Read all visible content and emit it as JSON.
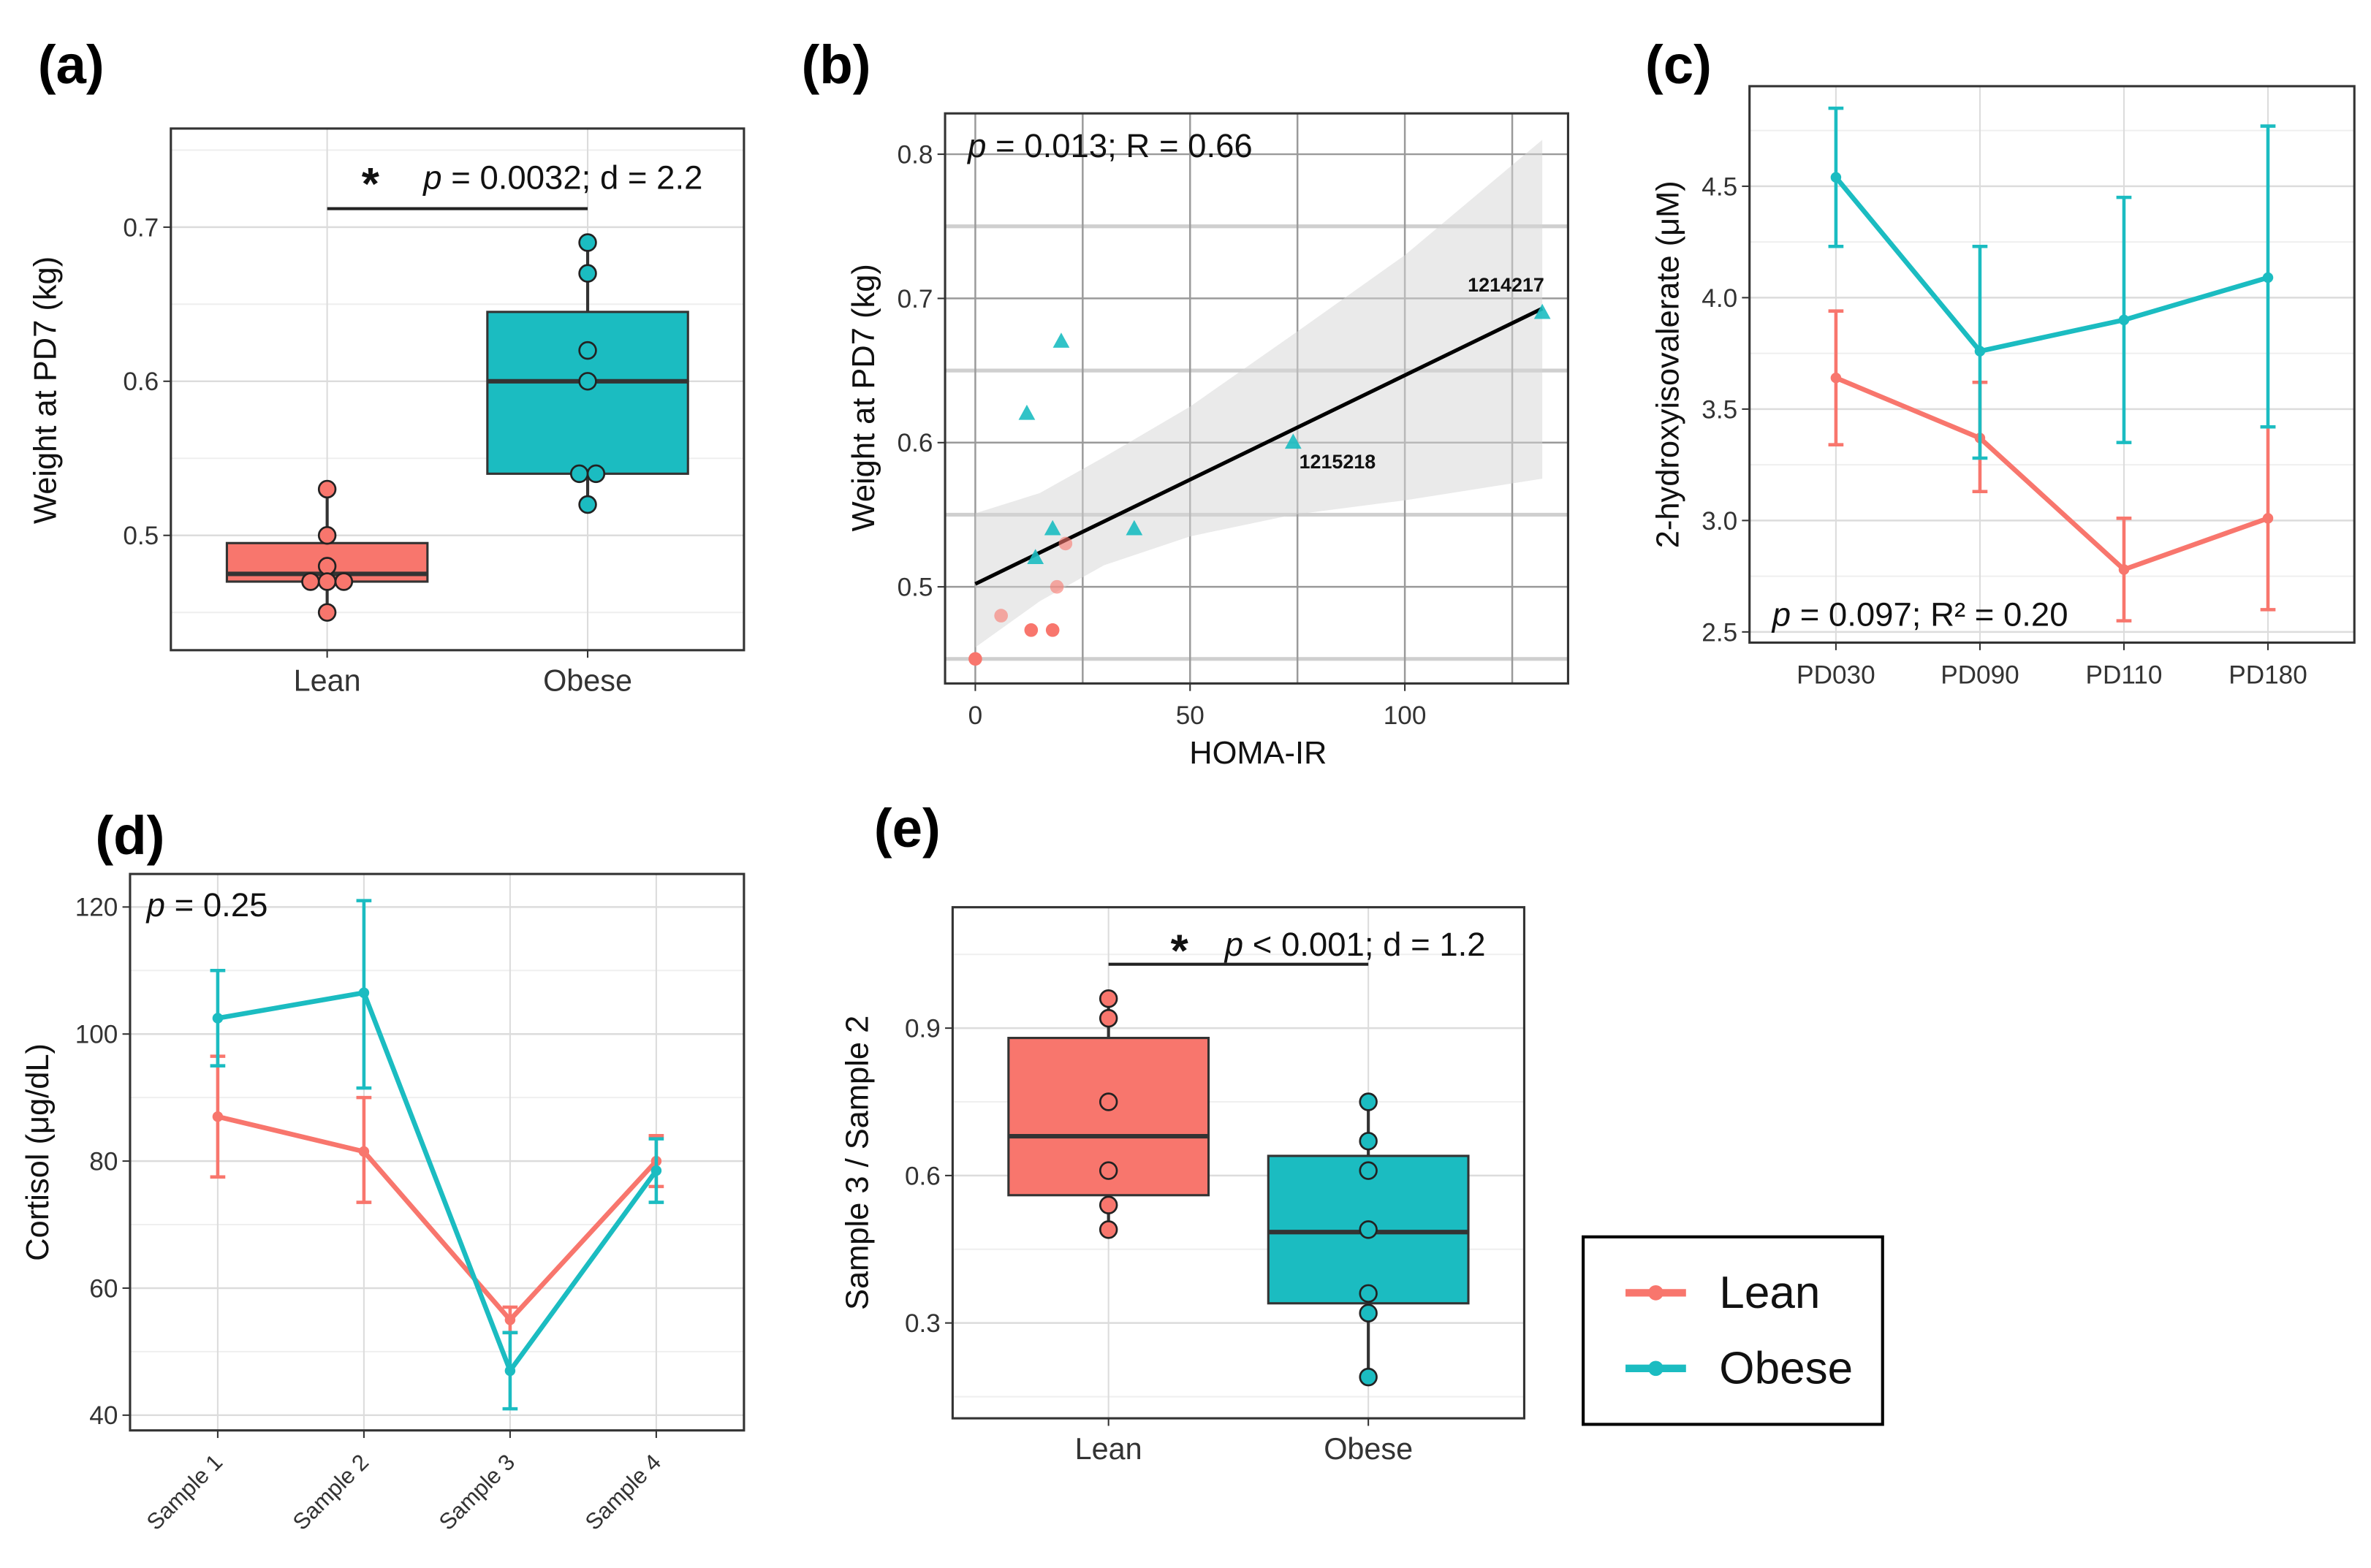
{
  "colors": {
    "lean": "#F8766D",
    "obese": "#1BBCC1",
    "frame": "#333333"
  },
  "legend": {
    "entries": [
      {
        "label": "Lean",
        "color": "#F8766D"
      },
      {
        "label": "Obese",
        "color": "#1BBCC1"
      }
    ]
  },
  "chart_data": [
    {
      "panel": "(a)",
      "type": "box",
      "categories": [
        "Lean",
        "Obese"
      ],
      "ylabel": "Weight at PD7 (kg)",
      "xlabel": "",
      "yticks": [
        "0.5",
        "0.6",
        "0.7"
      ],
      "ytick_values": [
        0.5,
        0.6,
        0.7
      ],
      "yminor": [
        0.45,
        0.55,
        0.65,
        0.75
      ],
      "ylim": [
        0.4255,
        0.764
      ],
      "grid": true,
      "boxes": [
        {
          "group": "Lean",
          "q1": 0.47,
          "median": 0.475,
          "q3": 0.495,
          "whisker_low": 0.45,
          "whisker_high": 0.53,
          "points": [
            0.53,
            0.5,
            0.48,
            0.47,
            0.47,
            0.47,
            0.45
          ]
        },
        {
          "group": "Obese",
          "q1": 0.54,
          "median": 0.6,
          "q3": 0.645,
          "whisker_low": 0.52,
          "whisker_high": 0.69,
          "points": [
            0.69,
            0.67,
            0.62,
            0.6,
            0.54,
            0.54,
            0.52
          ]
        }
      ],
      "annotation": {
        "star": "*",
        "p_symbol": "p",
        "text": " = 0.0032; d = 2.2",
        "bar_y": 0.712
      }
    },
    {
      "panel": "(b)",
      "type": "scatter",
      "xlabel": "HOMA-IR",
      "ylabel": "Weight at PD7 (kg)",
      "xticks": [
        "0",
        "50",
        "100"
      ],
      "xtick_values": [
        0,
        50,
        100
      ],
      "xminor": [
        25,
        75,
        125
      ],
      "yticks": [
        "0.5",
        "0.6",
        "0.7",
        "0.8"
      ],
      "ytick_values": [
        0.5,
        0.6,
        0.7,
        0.8
      ],
      "yminor": [
        0.45,
        0.55,
        0.65,
        0.75
      ],
      "xlim": [
        -7.04,
        138.0
      ],
      "ylim": [
        0.433,
        0.8283
      ],
      "grid": true,
      "series": [
        {
          "name": "Lean",
          "marker": "circle",
          "points": [
            [
              0,
              0.45
            ],
            [
              6,
              0.48
            ],
            [
              13,
              0.47
            ],
            [
              18,
              0.47
            ],
            [
              19,
              0.5
            ],
            [
              21,
              0.53
            ]
          ]
        },
        {
          "name": "Obese",
          "marker": "triangle",
          "points": [
            [
              12,
              0.62
            ],
            [
              20,
              0.67
            ],
            [
              18,
              0.54
            ],
            [
              14,
              0.52
            ],
            [
              37,
              0.54
            ],
            [
              74,
              0.6
            ],
            [
              132,
              0.69
            ]
          ]
        }
      ],
      "fit": {
        "x": [
          0,
          132
        ],
        "y": [
          0.502,
          0.693
        ]
      },
      "ci_band": {
        "x": [
          0,
          15,
          30,
          50,
          74,
          100,
          132
        ],
        "lower": [
          0.458,
          0.49,
          0.515,
          0.535,
          0.55,
          0.56,
          0.575
        ],
        "upper": [
          0.551,
          0.565,
          0.59,
          0.625,
          0.675,
          0.73,
          0.81
        ]
      },
      "point_labels": [
        {
          "text": "1214217",
          "x": 132,
          "y": 0.69
        },
        {
          "text": "1215218",
          "x": 74,
          "y": 0.6
        }
      ],
      "annotation": {
        "p_symbol": "p",
        "text": " = 0.013; R = 0.66"
      }
    },
    {
      "panel": "(c)",
      "type": "line",
      "categories": [
        "PD030",
        "PD090",
        "PD110",
        "PD180"
      ],
      "ylabel": "2-hydroxyisovalerate (μM)",
      "xlabel": "",
      "yticks": [
        "2.5",
        "3.0",
        "3.5",
        "4.0",
        "4.5"
      ],
      "ytick_values": [
        2.5,
        3.0,
        3.5,
        4.0,
        4.5
      ],
      "yminor": [
        2.75,
        3.25,
        3.75,
        4.25,
        4.75
      ],
      "ylim": [
        2.452,
        4.949
      ],
      "grid": true,
      "series": [
        {
          "name": "Lean",
          "values": [
            3.64,
            3.37,
            2.78,
            3.01
          ],
          "err_low": [
            3.34,
            3.13,
            2.55,
            2.6
          ],
          "err_high": [
            3.94,
            3.62,
            3.01,
            3.42
          ]
        },
        {
          "name": "Obese",
          "values": [
            4.54,
            3.76,
            3.9,
            4.09
          ],
          "err_low": [
            4.23,
            3.28,
            3.35,
            3.42
          ],
          "err_high": [
            4.85,
            4.23,
            4.45,
            4.77
          ]
        }
      ],
      "annotation": {
        "p_symbol": "p",
        "text": " = 0.097; R² = 0.20"
      }
    },
    {
      "panel": "(d)",
      "type": "line",
      "categories": [
        "Sample 1",
        "Sample 2",
        "Sample 3",
        "Sample 4"
      ],
      "ylabel": "Cortisol (μg/dL)",
      "xlabel": "",
      "yticks": [
        "40",
        "60",
        "80",
        "100",
        "120"
      ],
      "ytick_values": [
        40,
        60,
        80,
        100,
        120
      ],
      "yminor": [
        50,
        70,
        90,
        110
      ],
      "ylim": [
        37.6,
        125.2
      ],
      "grid": true,
      "series": [
        {
          "name": "Lean",
          "values": [
            87,
            81.5,
            55,
            80
          ],
          "err_low": [
            77.5,
            73.5,
            53,
            76
          ],
          "err_high": [
            96.5,
            90,
            57,
            84
          ]
        },
        {
          "name": "Obese",
          "values": [
            102.5,
            106.5,
            47,
            78.5
          ],
          "err_low": [
            95,
            91.5,
            41,
            73.5
          ],
          "err_high": [
            110,
            121,
            53,
            83.5
          ]
        }
      ],
      "annotation": {
        "p_symbol": "p",
        "text": " = 0.25"
      }
    },
    {
      "panel": "(e)",
      "type": "box",
      "categories": [
        "Lean",
        "Obese"
      ],
      "ylabel": "Sample 3 / Sample 2",
      "xlabel": "",
      "yticks": [
        "0.3",
        "0.6",
        "0.9"
      ],
      "ytick_values": [
        0.3,
        0.6,
        0.9
      ],
      "yminor": [
        0.15,
        0.45,
        0.75,
        1.05
      ],
      "ylim": [
        0.106,
        1.146
      ],
      "grid": true,
      "boxes": [
        {
          "group": "Lean",
          "q1": 0.56,
          "median": 0.68,
          "q3": 0.88,
          "whisker_low": 0.49,
          "whisker_high": 0.96,
          "points": [
            0.96,
            0.92,
            0.75,
            0.61,
            0.54,
            0.49
          ]
        },
        {
          "group": "Obese",
          "q1": 0.34,
          "median": 0.485,
          "q3": 0.64,
          "whisker_low": 0.19,
          "whisker_high": 0.75,
          "points": [
            0.75,
            0.67,
            0.61,
            0.49,
            0.36,
            0.32,
            0.19
          ]
        }
      ],
      "annotation": {
        "star": "*",
        "p_symbol": "p",
        "text": " < 0.001; d = 1.2",
        "bar_y": 1.03
      }
    }
  ]
}
